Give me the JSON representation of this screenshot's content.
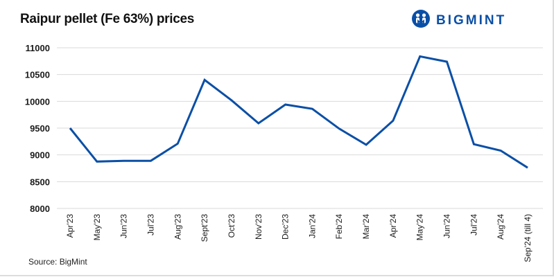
{
  "header": {
    "title": "Raipur pellet (Fe 63%) prices",
    "logo_text": "BIGMINT",
    "logo_icon": "bigmint-people-icon"
  },
  "footer": {
    "source": "Source: BigMint"
  },
  "colors": {
    "line": "#0a4fa6",
    "grid": "#d9d9d9",
    "brand": "#0a4fa6"
  },
  "chart_data": {
    "type": "line",
    "title": "Raipur pellet (Fe 63%) prices",
    "xlabel": "",
    "ylabel": "",
    "ylim": [
      8000,
      11000
    ],
    "yticks": [
      8000,
      8500,
      9000,
      9500,
      10000,
      10500,
      11000
    ],
    "grid": true,
    "legend": "none",
    "categories": [
      "Apr'23",
      "May'23",
      "Jun'23",
      "Jul'23",
      "Aug'23",
      "Sept'23",
      "Oct'23",
      "Nov'23",
      "Dec'23",
      "Jan'24",
      "Feb'24",
      "Mar'24",
      "Apr'24",
      "May'24",
      "Jun'24",
      "Jul'24",
      "Aug'24",
      "Sep'24 (till 4)"
    ],
    "series": [
      {
        "name": "Raipur pellet (Fe 63%)",
        "values": [
          9500,
          8875,
          8890,
          8890,
          9210,
          10400,
          10020,
          9590,
          9940,
          9860,
          9490,
          9190,
          9640,
          10840,
          10740,
          9200,
          9080,
          8760
        ]
      }
    ]
  }
}
